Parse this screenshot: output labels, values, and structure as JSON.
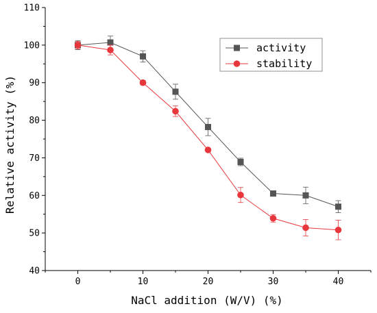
{
  "chart_data": {
    "type": "line",
    "xlabel": "NaCl addition (W/V)  (%)",
    "ylabel": "Relative activity (%)",
    "xlim": [
      -5,
      45
    ],
    "ylim": [
      40,
      110
    ],
    "xticks": [
      0,
      10,
      20,
      30,
      40
    ],
    "yticks": [
      40,
      50,
      60,
      70,
      80,
      90,
      100,
      110
    ],
    "x": [
      0,
      5,
      10,
      15,
      20,
      25,
      30,
      35,
      40
    ],
    "series": [
      {
        "name": "activity",
        "color": "#555555",
        "marker": "square",
        "values": [
          100.0,
          100.7,
          97.0,
          87.6,
          78.2,
          68.9,
          60.5,
          60.0,
          57.0
        ],
        "errors": [
          1.2,
          1.7,
          1.5,
          2.0,
          2.3,
          1.0,
          0.5,
          2.2,
          1.6
        ]
      },
      {
        "name": "stability",
        "color": "#e8373c",
        "marker": "circle",
        "values": [
          100.0,
          98.7,
          90.0,
          82.4,
          72.1,
          60.1,
          53.9,
          51.4,
          50.8
        ],
        "errors": [
          1.0,
          1.3,
          0.6,
          1.4,
          0.4,
          2.0,
          1.0,
          2.2,
          2.6
        ]
      }
    ],
    "legend": "top-right",
    "grid": false
  }
}
